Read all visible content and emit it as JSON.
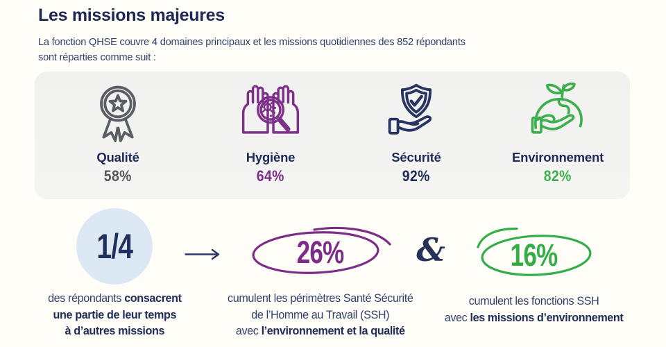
{
  "header": {
    "title": "Les missions majeures",
    "subtitle_lines": [
      "La fonction QHSE couvre 4 domaines principaux et les missions quotidiennes des 852 répondants",
      "sont réparties comme suit :"
    ]
  },
  "domains": [
    {
      "label": "Qualité",
      "value": "58%",
      "icon": "medal-award-icon",
      "icon_color": "#5b5f64",
      "value_color": "#54585c"
    },
    {
      "label": "Hygiène",
      "value": "64%",
      "icon": "hands-magnifier-icon",
      "icon_color": "#7d3189",
      "value_color": "#7b2d88"
    },
    {
      "label": "Sécurité",
      "value": "92%",
      "icon": "shield-hand-icon",
      "icon_color": "#283461",
      "value_color": "#1f2c58"
    },
    {
      "label": "Environnement",
      "value": "82%",
      "icon": "earth-hand-icon",
      "icon_color": "#3fae4f",
      "value_color": "#3cb14b"
    }
  ],
  "stats": {
    "quarter": {
      "value": "1/4",
      "desc": [
        [
          {
            "t": "des répondants ",
            "b": 0
          },
          {
            "t": "consacrent",
            "b": 1
          }
        ],
        [
          {
            "t": "une partie de leur temps",
            "b": 1
          }
        ],
        [
          {
            "t": "à d’autres missions",
            "b": 1
          }
        ]
      ]
    },
    "purple": {
      "value": "26%",
      "desc": [
        [
          {
            "t": "cumulent les périmètres Santé Sécurité",
            "b": 0
          }
        ],
        [
          {
            "t": "de l’Homme au Travail (SSH)",
            "b": 0
          }
        ],
        [
          {
            "t": "avec ",
            "b": 0
          },
          {
            "t": "l’environnement et la qualité",
            "b": 1
          }
        ]
      ]
    },
    "ampersand": "&",
    "green": {
      "value": "16%",
      "desc": [
        [
          {
            "t": "cumulent les fonctions SSH",
            "b": 0
          }
        ],
        [
          {
            "t": "avec ",
            "b": 0
          },
          {
            "t": "les missions d’environnement",
            "b": 1
          }
        ]
      ]
    }
  },
  "colors": {
    "navy": "#1f2b57",
    "purple": "#7b2d88",
    "green": "#3cb14b",
    "gray": "#54585c",
    "circle_bg": "#dce9f4",
    "card_bg": "#f2f2f0"
  },
  "chart_data": {
    "type": "table",
    "title": "Les missions majeures",
    "subtitle": "La fonction QHSE couvre 4 domaines principaux et les missions quotidiennes des 852 répondants sont réparties comme suit :",
    "categories": [
      "Qualité",
      "Hygiène",
      "Sécurité",
      "Environnement"
    ],
    "values": [
      58,
      64,
      92,
      82
    ],
    "unit": "%",
    "respondents": 852,
    "annotations": [
      "1/4 des répondants consacrent une partie de leur temps à d’autres missions",
      "26% cumulent les périmètres Santé Sécurité de l’Homme au Travail (SSH) avec l’environnement et la qualité",
      "16% cumulent les fonctions SSH avec les missions d’environnement"
    ]
  }
}
